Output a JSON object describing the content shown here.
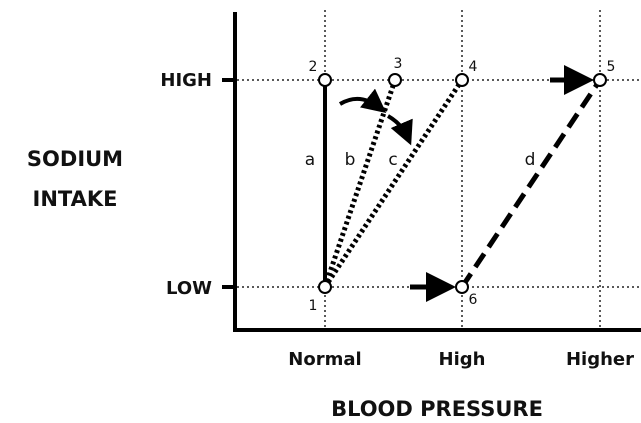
{
  "y_axis": {
    "title_lines": [
      "SODIUM",
      "INTAKE"
    ],
    "ticks": [
      "HIGH",
      "LOW"
    ]
  },
  "x_axis": {
    "title": "BLOOD PRESSURE",
    "ticks": [
      "Normal",
      "High",
      "Higher"
    ]
  },
  "points": [
    "1",
    "2",
    "3",
    "4",
    "5",
    "6"
  ],
  "lines": [
    "a",
    "b",
    "c",
    "d"
  ]
}
